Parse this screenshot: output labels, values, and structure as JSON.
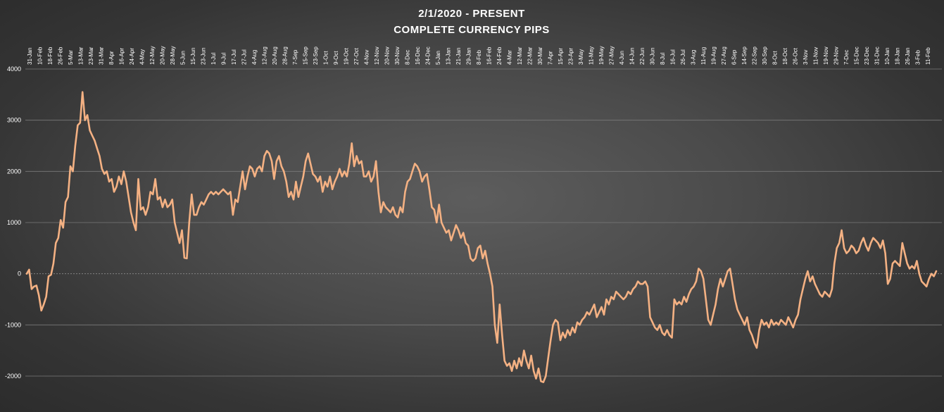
{
  "chart_data": {
    "type": "line",
    "title": "2/1/2020 - PRESENT",
    "subtitle": "COMPLETE CURRENCY PIPS",
    "xlabel": "",
    "ylabel": "",
    "ylim": [
      -2000,
      4000
    ],
    "y_ticks": [
      -2000,
      -1000,
      0,
      1000,
      2000,
      3000,
      4000
    ],
    "y_tick_labels": [
      "-2000",
      "-1000",
      "0",
      "1000",
      "2000",
      "3000",
      "4000"
    ],
    "x_tick_labels": [
      "31-Jan",
      "10-Feb",
      "18-Feb",
      "26-Feb",
      "5-Mar",
      "13-Mar",
      "23-Mar",
      "31-Mar",
      "8-Apr",
      "16-Apr",
      "24-Apr",
      "4-May",
      "12-May",
      "20-May",
      "28-May",
      "5-Jun",
      "15-Jun",
      "23-Jun",
      "1-Jul",
      "9-Jul",
      "17-Jul",
      "27-Jul",
      "4-Aug",
      "12-Aug",
      "20-Aug",
      "28-Aug",
      "7-Sep",
      "15-Sep",
      "23-Sep",
      "1-Oct",
      "9-Oct",
      "19-Oct",
      "27-Oct",
      "4-Nov",
      "12-Nov",
      "20-Nov",
      "30-Nov",
      "8-Dec",
      "16-Dec",
      "24-Dec",
      "5-Jan",
      "13-Jan",
      "21-Jan",
      "29-Jan",
      "8-Feb",
      "16-Feb",
      "24-Feb",
      "4-Mar",
      "12-Mar",
      "22-Mar",
      "30-Mar",
      "7-Apr",
      "15-Apr",
      "23-Apr",
      "3-May",
      "11-May",
      "19-May",
      "27-May",
      "4-Jun",
      "14-Jun",
      "22-Jun",
      "30-Jun",
      "8-Jul",
      "16-Jul",
      "26-Jul",
      "3-Aug",
      "11-Aug",
      "19-Aug",
      "27-Aug",
      "6-Sep",
      "14-Sep",
      "22-Sep",
      "30-Sep",
      "8-Oct",
      "18-Oct",
      "26-Oct",
      "3-Nov",
      "11-Nov",
      "19-Nov",
      "29-Nov",
      "7-Dec",
      "15-Dec",
      "23-Dec",
      "31-Dec",
      "10-Jan",
      "18-Jan",
      "26-Jan",
      "3-Feb",
      "11-Feb"
    ],
    "grid": true,
    "legend": "none",
    "line_color": "#f4b183",
    "gridline_color": "#7a7a7a",
    "zero_line_color": "#8c8c8c",
    "series": [
      {
        "values": [
          0,
          80,
          -300,
          -250,
          -230,
          -420,
          -720,
          -600,
          -450,
          -50,
          -20,
          200,
          600,
          700,
          1050,
          900,
          1400,
          1500,
          2100,
          2000,
          2500,
          2900,
          2950,
          3550,
          3000,
          3100,
          2800,
          2700,
          2600,
          2450,
          2300,
          2050,
          1950,
          2000,
          1800,
          1850,
          1600,
          1700,
          1900,
          1750,
          2000,
          1800,
          1500,
          1200,
          1000,
          850,
          1850,
          1250,
          1300,
          1150,
          1300,
          1600,
          1550,
          1850,
          1450,
          1500,
          1300,
          1450,
          1300,
          1350,
          1450,
          1000,
          800,
          600,
          850,
          310,
          300,
          1000,
          1550,
          1150,
          1150,
          1300,
          1400,
          1350,
          1450,
          1550,
          1600,
          1550,
          1600,
          1550,
          1600,
          1650,
          1600,
          1550,
          1600,
          1150,
          1450,
          1400,
          1700,
          2000,
          1650,
          1900,
          2100,
          2050,
          1900,
          2050,
          2100,
          2000,
          2300,
          2400,
          2350,
          2200,
          1850,
          2200,
          2300,
          2100,
          2000,
          1800,
          1500,
          1600,
          1450,
          1800,
          1500,
          1700,
          1900,
          2200,
          2350,
          2150,
          1950,
          1900,
          1800,
          1900,
          1600,
          1800,
          1700,
          1900,
          1650,
          1800,
          1900,
          2050,
          1900,
          2000,
          1900,
          2150,
          2550,
          2100,
          2300,
          2150,
          2200,
          1900,
          1900,
          2000,
          1800,
          1900,
          2200,
          1600,
          1200,
          1400,
          1300,
          1250,
          1200,
          1300,
          1150,
          1100,
          1300,
          1200,
          1600,
          1800,
          1850,
          2000,
          2150,
          2100,
          2000,
          1800,
          1900,
          1950,
          1650,
          1300,
          1250,
          1000,
          1350,
          1000,
          900,
          800,
          850,
          650,
          800,
          950,
          850,
          700,
          800,
          600,
          550,
          300,
          250,
          300,
          500,
          550,
          300,
          450,
          200,
          0,
          -250,
          -1000,
          -1350,
          -600,
          -1200,
          -1700,
          -1800,
          -1750,
          -1900,
          -1700,
          -1850,
          -1650,
          -1800,
          -1500,
          -1700,
          -1850,
          -1600,
          -1900,
          -2050,
          -1850,
          -2100,
          -2120,
          -2000,
          -1650,
          -1300,
          -1000,
          -900,
          -950,
          -1300,
          -1150,
          -1250,
          -1100,
          -1200,
          -1050,
          -1150,
          -950,
          -1000,
          -900,
          -850,
          -750,
          -800,
          -700,
          -600,
          -850,
          -750,
          -650,
          -800,
          -500,
          -600,
          -450,
          -500,
          -350,
          -400,
          -450,
          -500,
          -450,
          -350,
          -400,
          -300,
          -250,
          -150,
          -200,
          -200,
          -150,
          -250,
          -850,
          -950,
          -1050,
          -1100,
          -1000,
          -1150,
          -1200,
          -1100,
          -1200,
          -1250,
          -500,
          -600,
          -550,
          -600,
          -450,
          -550,
          -400,
          -300,
          -250,
          -150,
          100,
          50,
          -100,
          -500,
          -900,
          -1000,
          -800,
          -600,
          -300,
          -100,
          -250,
          -100,
          50,
          100,
          -200,
          -500,
          -700,
          -800,
          -900,
          -1000,
          -850,
          -1100,
          -1200,
          -1350,
          -1450,
          -1100,
          -900,
          -1000,
          -950,
          -1050,
          -900,
          -1000,
          -950,
          -1000,
          -900,
          -950,
          -1000,
          -850,
          -950,
          -1050,
          -900,
          -800,
          -500,
          -300,
          -100,
          50,
          -150,
          -50,
          -200,
          -300,
          -400,
          -450,
          -350,
          -400,
          -450,
          -300,
          200,
          500,
          600,
          850,
          500,
          400,
          450,
          550,
          500,
          400,
          450,
          600,
          700,
          550,
          450,
          600,
          700,
          650,
          600,
          500,
          650,
          400,
          -200,
          -100,
          200,
          250,
          200,
          150,
          600,
          400,
          200,
          100,
          150,
          100,
          250,
          0,
          -150,
          -200,
          -250,
          -100,
          0,
          -50,
          50
        ]
      }
    ]
  }
}
